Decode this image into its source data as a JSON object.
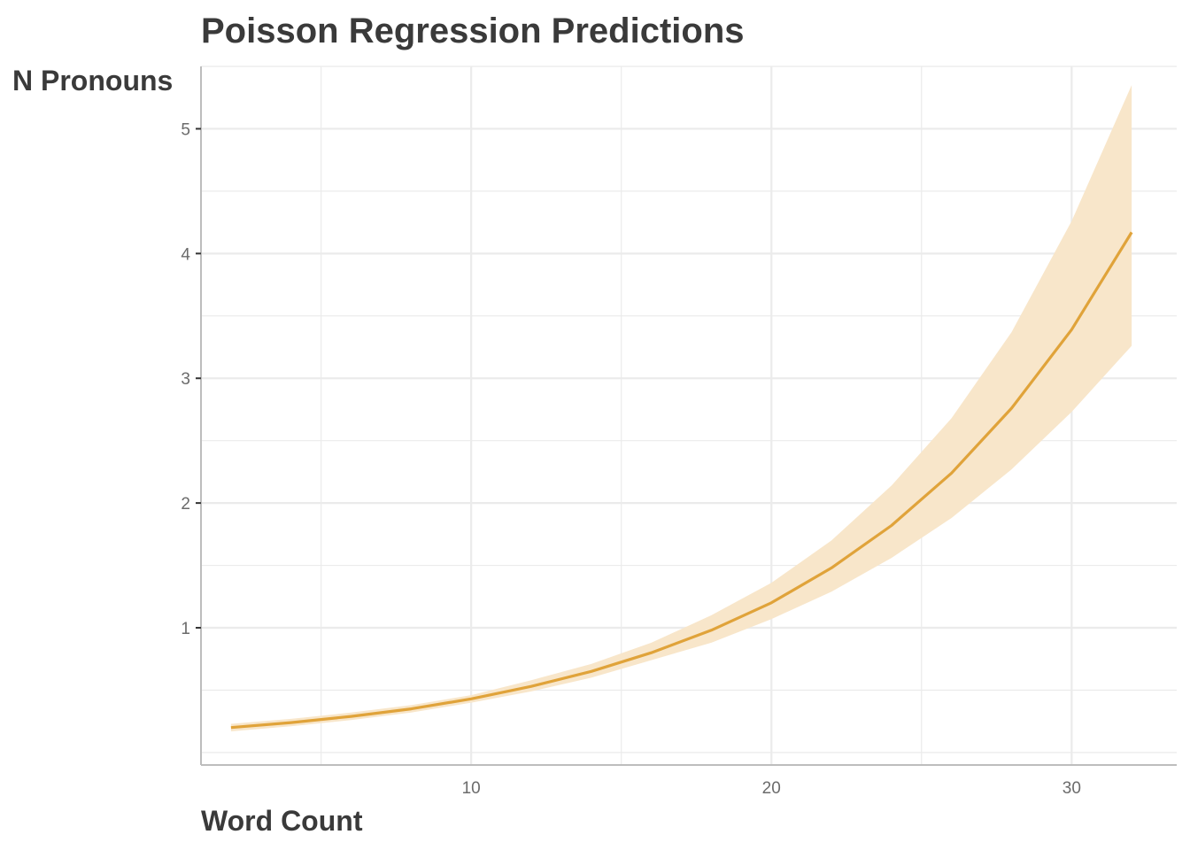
{
  "chart_data": {
    "type": "line",
    "title": "Poisson Regression Predictions",
    "xlabel": "Word Count",
    "ylabel": "N Pronouns",
    "xlim": [
      1.0,
      33.5
    ],
    "ylim": [
      -0.1,
      5.5
    ],
    "x_ticks": [
      10,
      20,
      30
    ],
    "y_ticks": [
      1,
      2,
      3,
      4,
      5
    ],
    "x_minor_grid": [
      5,
      15,
      25
    ],
    "y_minor_grid": [
      0.0,
      0.5,
      1.5,
      2.5,
      3.5,
      4.5,
      5.5
    ],
    "grid": true,
    "legend": "none",
    "colors": {
      "line": "#e0a33a",
      "ribbon": "#f8e6ca",
      "grid": "#ebebeb",
      "axis": "#bdbdbd"
    },
    "series": [
      {
        "x": [
          2,
          4,
          6,
          8,
          10,
          12,
          14,
          16,
          18,
          20,
          22,
          24,
          26,
          28,
          30,
          32
        ],
        "y": [
          0.2,
          0.24,
          0.29,
          0.35,
          0.43,
          0.53,
          0.65,
          0.8,
          0.98,
          1.2,
          1.48,
          1.82,
          2.24,
          2.76,
          3.39,
          4.17
        ],
        "lower": [
          0.17,
          0.21,
          0.26,
          0.32,
          0.4,
          0.49,
          0.6,
          0.74,
          0.88,
          1.07,
          1.29,
          1.56,
          1.88,
          2.27,
          2.73,
          3.26
        ],
        "upper": [
          0.23,
          0.27,
          0.32,
          0.38,
          0.46,
          0.58,
          0.71,
          0.88,
          1.1,
          1.36,
          1.7,
          2.14,
          2.68,
          3.37,
          4.26,
          5.35
        ]
      }
    ]
  }
}
